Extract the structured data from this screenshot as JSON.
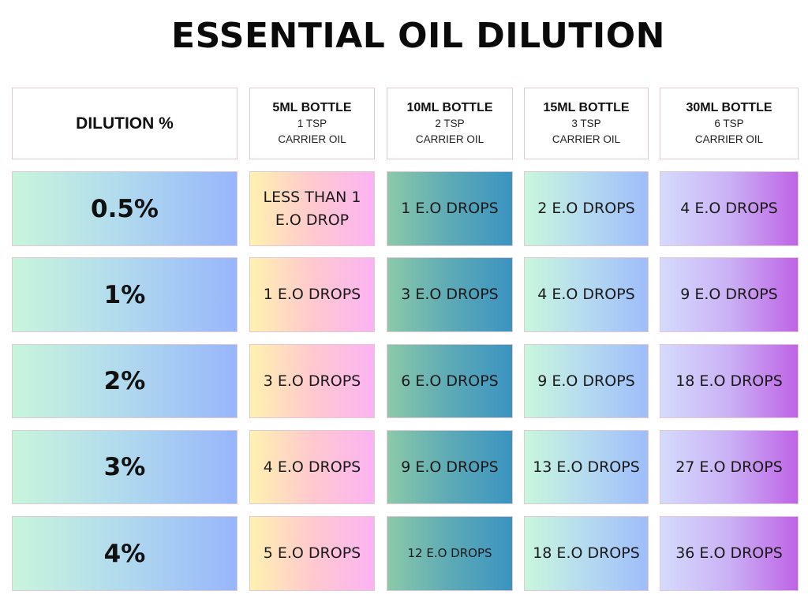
{
  "title": "ESSENTIAL OIL DILUTION",
  "header": {
    "dilution_label": "DILUTION %",
    "columns": [
      {
        "bottle": "5ML BOTTLE",
        "tsp": "1 TSP",
        "carrier": "CARRIER OIL"
      },
      {
        "bottle": "10ML BOTTLE",
        "tsp": "2 TSP",
        "carrier": "CARRIER OIL"
      },
      {
        "bottle": "15ML BOTTLE",
        "tsp": "3 TSP",
        "carrier": "CARRIER OIL"
      },
      {
        "bottle": "30ML BOTTLE",
        "tsp": "6 TSP",
        "carrier": "CARRIER OIL"
      }
    ]
  },
  "rows": [
    {
      "dilution": "0.5%",
      "values": [
        "LESS THAN 1 E.O DROP",
        "1 E.O DROPS",
        "2 E.O DROPS",
        "4 E.O DROPS"
      ]
    },
    {
      "dilution": "1%",
      "values": [
        "1 E.O DROPS",
        "3 E.O DROPS",
        "4 E.O DROPS",
        "9 E.O DROPS"
      ]
    },
    {
      "dilution": "2%",
      "values": [
        "3 E.O DROPS",
        "6 E.O DROPS",
        "9 E.O DROPS",
        "18 E.O DROPS"
      ]
    },
    {
      "dilution": "3%",
      "values": [
        "4 E.O DROPS",
        "9 E.O DROPS",
        "13 E.O DROPS",
        "27 E.O DROPS"
      ]
    },
    {
      "dilution": "4%",
      "values": [
        "5 E.O DROPS",
        "12 E.O DROPS",
        "18 E.O DROPS",
        "36 E.O DROPS"
      ]
    }
  ]
}
